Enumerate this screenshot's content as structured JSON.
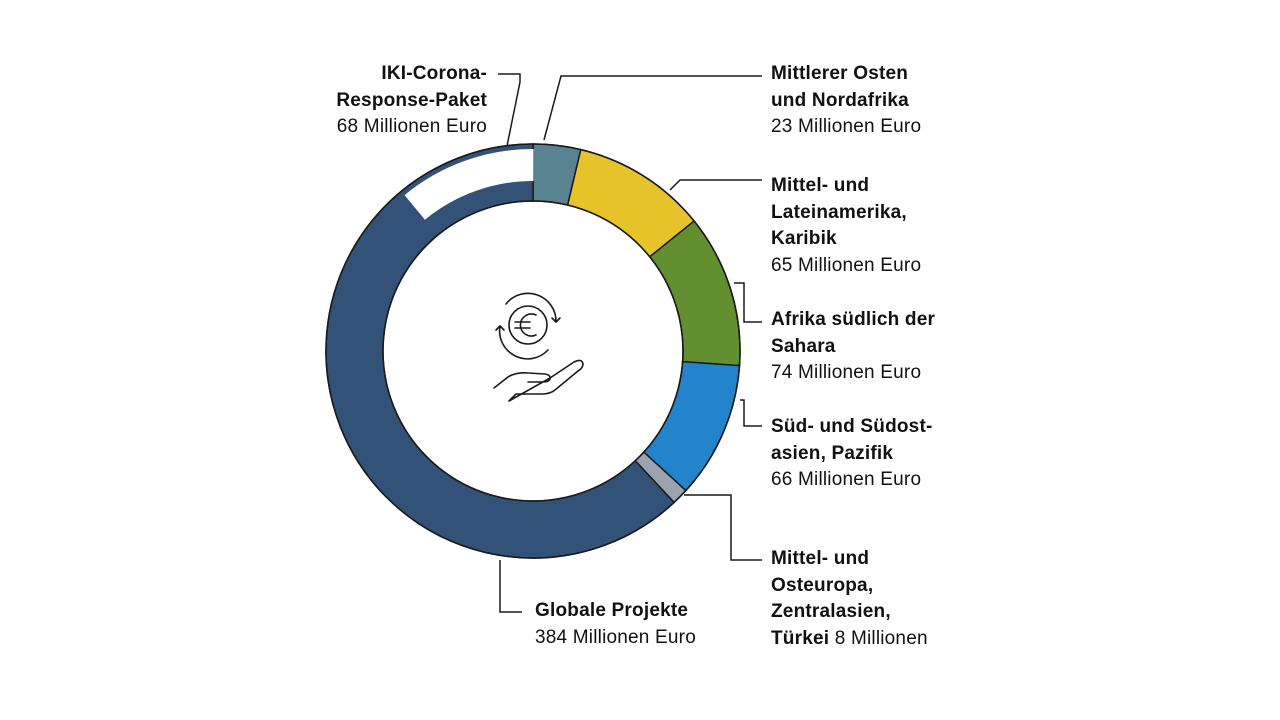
{
  "chart_data": {
    "type": "pie",
    "title": "",
    "unit": "Millionen Euro",
    "slices": [
      {
        "name": "Mittlerer Osten und Nordafrika",
        "value": 23,
        "color": "#5a8391"
      },
      {
        "name": "Mittel- und Lateinamerika, Karibik",
        "value": 65,
        "color": "#e6c328"
      },
      {
        "name": "Afrika südlich der Sahara",
        "value": 74,
        "color": "#628f30"
      },
      {
        "name": "Süd- und Südostasien, Pazifik",
        "value": 66,
        "color": "#2384cc"
      },
      {
        "name": "Mittel- und Osteuropa, Zentralasien, Türkei",
        "value": 8,
        "color": "#9ba2b0"
      },
      {
        "name": "Globale Projekte",
        "value": 384,
        "color": "#325377",
        "sub": {
          "name": "IKI-Corona-Response-Paket",
          "value": 68,
          "color": "#ffffff"
        }
      }
    ]
  },
  "labels": {
    "corona": {
      "line1": "IKI-Corona-",
      "line2": "Response-Paket",
      "value": "68 Millionen Euro"
    },
    "mena": {
      "line1": "Mittlerer Osten",
      "line2": "und Nordafrika",
      "value": "23 Millionen Euro"
    },
    "latam": {
      "line1": "Mittel- und",
      "line2": "Lateinamerika,",
      "line3": "Karibik",
      "value": "65 Millionen Euro"
    },
    "africa": {
      "line1": "Afrika südlich der",
      "line2": "Sahara",
      "value": "74 Millionen Euro"
    },
    "asia": {
      "line1": "Süd- und Südost-",
      "line2": "asien, Pazifik",
      "value": "66 Millionen Euro"
    },
    "europe": {
      "line1": "Mittel- und",
      "line2": "Osteuropa,",
      "line3": "Zentralasien,",
      "line4": "Türkei",
      "value": "8 Millionen"
    },
    "global": {
      "line1": "Globale Projekte",
      "value": "384 Millionen Euro"
    }
  },
  "icon": "euro-exchange-hand-icon",
  "colors": {
    "leader": "#1a1a1a",
    "stroke": "#1a1a1a"
  }
}
